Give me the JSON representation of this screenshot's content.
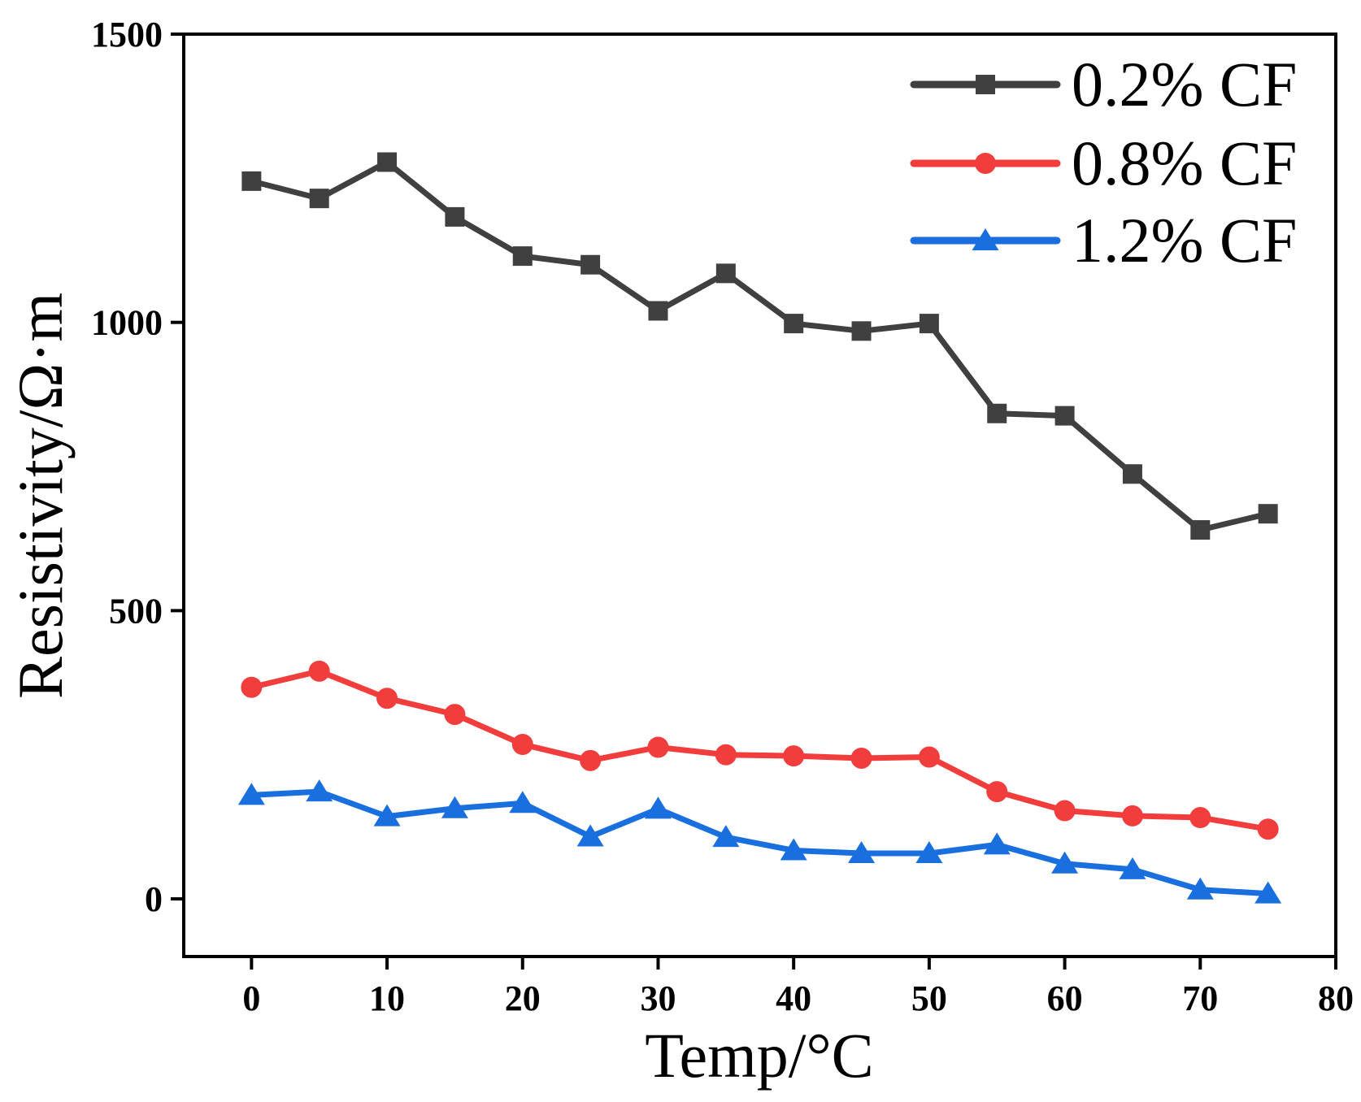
{
  "chart_data": {
    "type": "line",
    "title": "",
    "xlabel": "Temp/°C",
    "ylabel": "Resistivity/Ω·m",
    "xlim": [
      -5,
      80
    ],
    "ylim": [
      -100,
      1500
    ],
    "xticks": [
      0,
      10,
      20,
      30,
      40,
      50,
      60,
      70,
      80
    ],
    "yticks": [
      0,
      500,
      1000,
      1500
    ],
    "grid": false,
    "legend_position": "top-right",
    "x": [
      0,
      5,
      10,
      15,
      20,
      25,
      30,
      35,
      40,
      45,
      50,
      55,
      60,
      65,
      70,
      75
    ],
    "series": [
      {
        "name": "0.2% CF",
        "color": "#404040",
        "marker": "square",
        "values": [
          1245,
          1215,
          1278,
          1183,
          1115,
          1100,
          1020,
          1085,
          998,
          985,
          998,
          842,
          838,
          737,
          640,
          668
        ]
      },
      {
        "name": "0.8% CF",
        "color": "#f23d3d",
        "marker": "circle",
        "values": [
          367,
          395,
          348,
          320,
          268,
          240,
          263,
          250,
          248,
          244,
          246,
          186,
          153,
          144,
          141,
          121
        ]
      },
      {
        "name": "1.2% CF",
        "color": "#1a6fdf",
        "marker": "triangle",
        "values": [
          180,
          186,
          143,
          157,
          166,
          108,
          156,
          107,
          84,
          79,
          79,
          94,
          61,
          51,
          16,
          9
        ]
      }
    ]
  }
}
